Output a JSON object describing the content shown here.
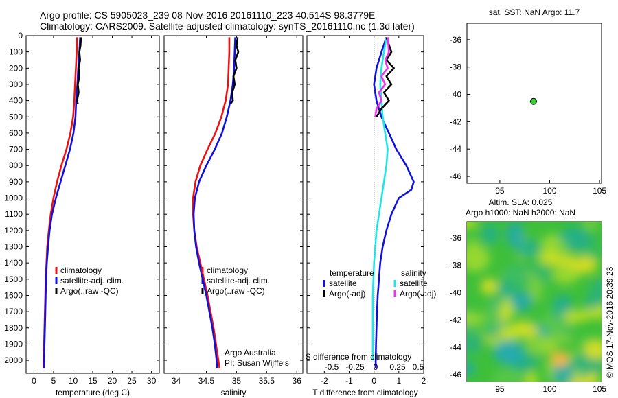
{
  "header": {
    "line1": "Argo profile: CS 5905023_239 08-Nov-2016 20161110_223 40.514S 98.3779E",
    "line2": "Climatology: CARS2009. Satellite-adjusted climatology: synTS_20161110.nc (1.3d later)"
  },
  "colors": {
    "climatology": "#ee1111",
    "satellite": "#1111dd",
    "argo": "#000000",
    "sal_satellite": "#22e6e6",
    "sal_argo": "#ee33ee",
    "sst_marker": "#33cc33"
  },
  "chart_data": [
    {
      "type": "line",
      "name": "temperature-profile",
      "xlabel": "temperature (deg C)",
      "ylabel": "",
      "xlim": [
        -2,
        32
      ],
      "ylim": [
        2080,
        0
      ],
      "xticks": [
        0,
        5,
        10,
        15,
        20,
        25,
        30
      ],
      "yticks": [
        0,
        100,
        200,
        300,
        400,
        500,
        600,
        700,
        800,
        900,
        1000,
        1100,
        1200,
        1300,
        1400,
        1500,
        1600,
        1700,
        1800,
        1900,
        2000
      ],
      "legend": [
        "climatology",
        "satellite-adj. clim.",
        "Argo(..raw -QC)"
      ],
      "series": [
        {
          "name": "climatology",
          "color": "#ee1111",
          "points": [
            [
              11.0,
              10
            ],
            [
              10.9,
              100
            ],
            [
              10.7,
              200
            ],
            [
              10.5,
              300
            ],
            [
              10.3,
              400
            ],
            [
              10.0,
              500
            ],
            [
              9.3,
              600
            ],
            [
              8.3,
              700
            ],
            [
              7.0,
              800
            ],
            [
              5.9,
              900
            ],
            [
              5.0,
              1000
            ],
            [
              4.3,
              1100
            ],
            [
              3.8,
              1200
            ],
            [
              3.4,
              1300
            ],
            [
              3.2,
              1400
            ],
            [
              3.0,
              1500
            ],
            [
              2.9,
              1600
            ],
            [
              2.8,
              1700
            ],
            [
              2.7,
              1800
            ],
            [
              2.6,
              1900
            ],
            [
              2.5,
              2000
            ],
            [
              2.5,
              2050
            ]
          ]
        },
        {
          "name": "satellite-adj. clim.",
          "color": "#1111dd",
          "points": [
            [
              11.8,
              10
            ],
            [
              11.6,
              100
            ],
            [
              11.3,
              200
            ],
            [
              11.1,
              300
            ],
            [
              10.8,
              400
            ],
            [
              10.6,
              500
            ],
            [
              10.1,
              600
            ],
            [
              9.2,
              700
            ],
            [
              8.0,
              800
            ],
            [
              6.8,
              900
            ],
            [
              5.6,
              1000
            ],
            [
              4.6,
              1100
            ],
            [
              4.0,
              1200
            ],
            [
              3.6,
              1300
            ],
            [
              3.3,
              1400
            ],
            [
              3.1,
              1500
            ],
            [
              3.0,
              1600
            ],
            [
              2.9,
              1700
            ],
            [
              2.8,
              1800
            ],
            [
              2.7,
              1900
            ],
            [
              2.6,
              2000
            ],
            [
              2.6,
              2050
            ]
          ]
        },
        {
          "name": "Argo(..raw -QC)",
          "color": "#000000",
          "points": [
            [
              12.0,
              10
            ],
            [
              11.9,
              60
            ],
            [
              11.6,
              100
            ],
            [
              11.8,
              150
            ],
            [
              11.4,
              200
            ],
            [
              11.6,
              250
            ],
            [
              11.2,
              300
            ],
            [
              11.4,
              350
            ],
            [
              11.0,
              400
            ],
            [
              11.2,
              420
            ]
          ]
        }
      ]
    },
    {
      "type": "line",
      "name": "salinity-profile",
      "xlabel": "salinity",
      "xlim": [
        33.8,
        36.1
      ],
      "ylim": [
        2080,
        0
      ],
      "xticks": [
        34,
        34.5,
        35,
        35.5,
        36
      ],
      "legend": [
        "climatology",
        "satellite-adj. clim.",
        "Argo(..raw -QC)"
      ],
      "annotation": [
        "Argo Australia",
        "PI: Susan Wijffels"
      ],
      "series": [
        {
          "name": "climatology",
          "color": "#ee1111",
          "points": [
            [
              34.88,
              10
            ],
            [
              34.88,
              100
            ],
            [
              34.87,
              200
            ],
            [
              34.86,
              300
            ],
            [
              34.82,
              400
            ],
            [
              34.75,
              500
            ],
            [
              34.65,
              600
            ],
            [
              34.52,
              700
            ],
            [
              34.4,
              800
            ],
            [
              34.32,
              900
            ],
            [
              34.28,
              1000
            ],
            [
              34.28,
              1100
            ],
            [
              34.3,
              1200
            ],
            [
              34.34,
              1300
            ],
            [
              34.4,
              1400
            ],
            [
              34.46,
              1500
            ],
            [
              34.52,
              1600
            ],
            [
              34.57,
              1700
            ],
            [
              34.62,
              1800
            ],
            [
              34.66,
              1900
            ],
            [
              34.7,
              2000
            ],
            [
              34.72,
              2050
            ]
          ]
        },
        {
          "name": "satellite-adj. clim.",
          "color": "#1111dd",
          "points": [
            [
              34.98,
              10
            ],
            [
              34.97,
              100
            ],
            [
              34.96,
              200
            ],
            [
              34.94,
              300
            ],
            [
              34.9,
              400
            ],
            [
              34.84,
              500
            ],
            [
              34.76,
              600
            ],
            [
              34.64,
              700
            ],
            [
              34.5,
              800
            ],
            [
              34.38,
              900
            ],
            [
              34.31,
              1000
            ],
            [
              34.29,
              1100
            ],
            [
              34.3,
              1200
            ],
            [
              34.33,
              1300
            ],
            [
              34.38,
              1400
            ],
            [
              34.44,
              1500
            ],
            [
              34.5,
              1600
            ],
            [
              34.55,
              1700
            ],
            [
              34.6,
              1800
            ],
            [
              34.64,
              1900
            ],
            [
              34.67,
              2000
            ],
            [
              34.68,
              2050
            ]
          ]
        },
        {
          "name": "Argo(..raw -QC)",
          "color": "#000000",
          "points": [
            [
              35.02,
              10
            ],
            [
              35.0,
              60
            ],
            [
              35.03,
              100
            ],
            [
              34.98,
              150
            ],
            [
              35.0,
              200
            ],
            [
              34.95,
              250
            ],
            [
              34.97,
              300
            ],
            [
              34.93,
              350
            ],
            [
              34.94,
              400
            ],
            [
              34.9,
              420
            ]
          ]
        }
      ]
    },
    {
      "type": "line",
      "name": "difference-profile",
      "xlabel": "T difference from climatology",
      "top_xlabel": "S difference from climatology",
      "xlim": [
        -2.7,
        2.0
      ],
      "ylim": [
        2080,
        0
      ],
      "xticks": [
        -2,
        -1,
        0,
        1,
        2
      ],
      "top_xticks": [
        "-0.5",
        "-0.25",
        "0",
        "0.25",
        "0.5"
      ],
      "legend_groups": [
        {
          "title": "temperature",
          "items": [
            "satellite",
            "Argo(-adj)"
          ]
        },
        {
          "title": "salinity",
          "items": [
            "satellite",
            "Argo(-adj)"
          ]
        }
      ],
      "series": [
        {
          "name": "temperature satellite",
          "color": "#1111dd",
          "points": [
            [
              0.5,
              10
            ],
            [
              0.3,
              100
            ],
            [
              0.1,
              200
            ],
            [
              0.0,
              300
            ],
            [
              0.1,
              400
            ],
            [
              0.3,
              500
            ],
            [
              0.6,
              600
            ],
            [
              0.9,
              700
            ],
            [
              1.3,
              800
            ],
            [
              1.6,
              900
            ],
            [
              1.5,
              950
            ],
            [
              1.0,
              1000
            ],
            [
              0.7,
              1100
            ],
            [
              0.5,
              1200
            ],
            [
              0.35,
              1300
            ],
            [
              0.25,
              1400
            ],
            [
              0.2,
              1500
            ],
            [
              0.15,
              1600
            ],
            [
              0.12,
              1700
            ],
            [
              0.1,
              1800
            ],
            [
              0.08,
              1900
            ],
            [
              0.07,
              2000
            ],
            [
              0.07,
              2050
            ]
          ]
        },
        {
          "name": "salinity satellite",
          "color": "#22e6e6",
          "points": [
            [
              0.5,
              10
            ],
            [
              0.4,
              100
            ],
            [
              0.3,
              200
            ],
            [
              0.25,
              300
            ],
            [
              0.3,
              400
            ],
            [
              0.35,
              500
            ],
            [
              0.45,
              600
            ],
            [
              0.55,
              700
            ],
            [
              0.5,
              800
            ],
            [
              0.4,
              900
            ],
            [
              0.3,
              1000
            ],
            [
              0.2,
              1100
            ],
            [
              0.1,
              1200
            ],
            [
              0.0,
              1400
            ],
            [
              -0.05,
              1600
            ],
            [
              -0.05,
              1800
            ],
            [
              -0.05,
              2000
            ]
          ]
        },
        {
          "name": "temperature Argo(-adj)",
          "color": "#000000",
          "points": [
            [
              0.5,
              10
            ],
            [
              0.7,
              100
            ],
            [
              0.5,
              150
            ],
            [
              0.8,
              200
            ],
            [
              0.5,
              250
            ],
            [
              0.7,
              300
            ],
            [
              0.4,
              350
            ],
            [
              0.6,
              400
            ],
            [
              0.3,
              450
            ],
            [
              0.1,
              500
            ]
          ]
        },
        {
          "name": "salinity Argo(-adj)",
          "color": "#ee33ee",
          "points": [
            [
              0.55,
              10
            ],
            [
              0.6,
              100
            ],
            [
              0.45,
              150
            ],
            [
              0.55,
              200
            ],
            [
              0.3,
              250
            ],
            [
              0.45,
              300
            ],
            [
              0.2,
              350
            ],
            [
              0.3,
              400
            ],
            [
              0.1,
              450
            ],
            [
              0.05,
              500
            ]
          ]
        }
      ]
    },
    {
      "type": "scatter",
      "name": "sst-map",
      "title": "sat. SST: NaN Argo: 11.7",
      "xlim": [
        91.7,
        105.2
      ],
      "ylim": [
        -46.5,
        -34.8
      ],
      "xticks": [
        95,
        100,
        105
      ],
      "yticks": [
        -36,
        -38,
        -40,
        -42,
        -44,
        -46
      ],
      "points": [
        [
          98.38,
          -40.51
        ]
      ]
    },
    {
      "type": "heatmap",
      "name": "altimetry-map",
      "title_line1": "Altim. SLA: 0.025",
      "title_line2": "Argo h1000: NaN h2000: NaN",
      "xlim": [
        91.7,
        105.2
      ],
      "ylim": [
        -46.5,
        -34.8
      ],
      "xticks": [
        95,
        100,
        105
      ],
      "yticks": [
        -36,
        -38,
        -40,
        -42,
        -44,
        -46
      ],
      "side_label": "©IMOS 17-Nov-2016 20:39:23"
    }
  ]
}
